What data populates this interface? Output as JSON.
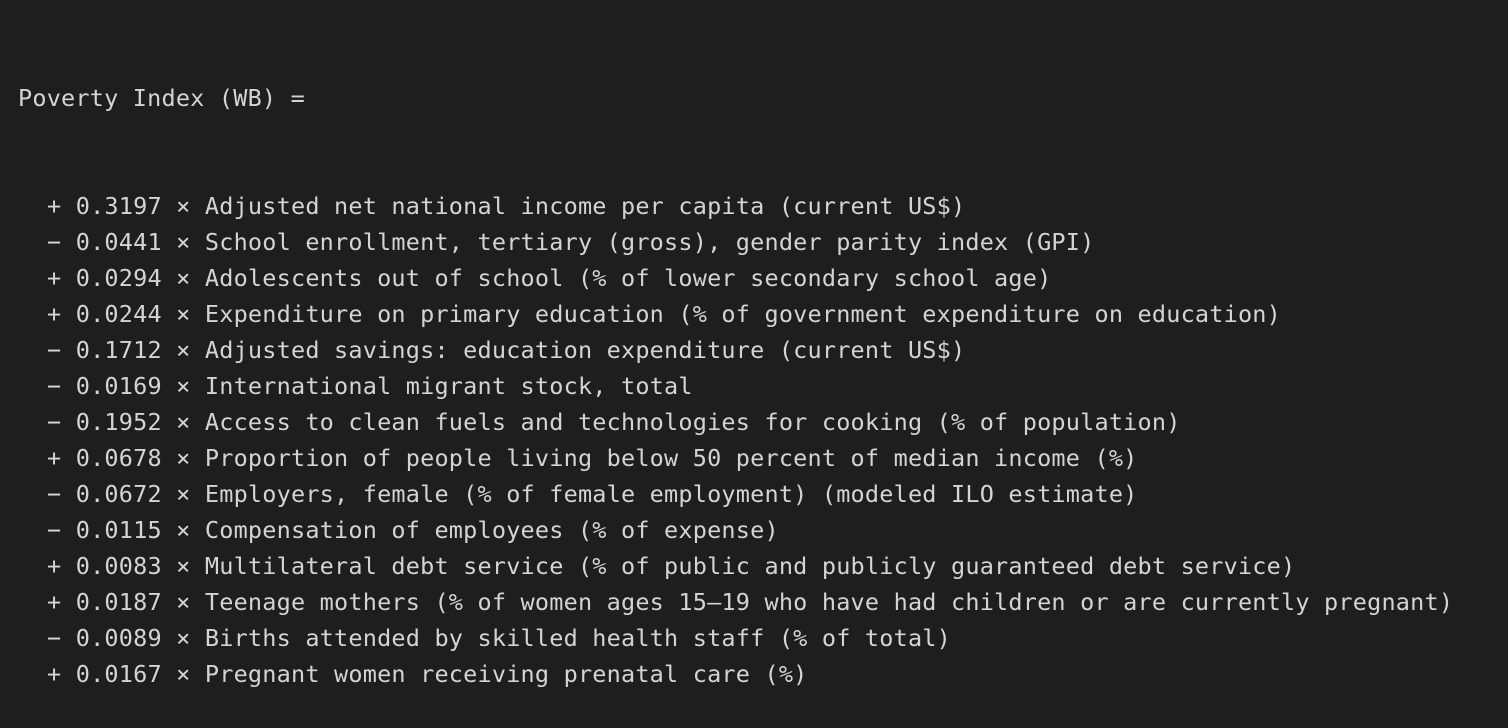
{
  "header": "Poverty Index (WB) =",
  "terms": [
    {
      "sign": "+",
      "coef": "0.3197",
      "name": "Adjusted net national income per capita (current US$)"
    },
    {
      "sign": "−",
      "coef": "0.0441",
      "name": "School enrollment, tertiary (gross), gender parity index (GPI)"
    },
    {
      "sign": "+",
      "coef": "0.0294",
      "name": "Adolescents out of school (% of lower secondary school age)"
    },
    {
      "sign": "+",
      "coef": "0.0244",
      "name": "Expenditure on primary education (% of government expenditure on education)"
    },
    {
      "sign": "−",
      "coef": "0.1712",
      "name": "Adjusted savings: education expenditure (current US$)"
    },
    {
      "sign": "−",
      "coef": "0.0169",
      "name": "International migrant stock, total"
    },
    {
      "sign": "−",
      "coef": "0.1952",
      "name": "Access to clean fuels and technologies for cooking (% of population)"
    },
    {
      "sign": "+",
      "coef": "0.0678",
      "name": "Proportion of people living below 50 percent of median income (%)"
    },
    {
      "sign": "−",
      "coef": "0.0672",
      "name": "Employers, female (% of female employment) (modeled ILO estimate)"
    },
    {
      "sign": "−",
      "coef": "0.0115",
      "name": "Compensation of employees (% of expense)"
    },
    {
      "sign": "+",
      "coef": "0.0083",
      "name": "Multilateral debt service (% of public and publicly guaranteed debt service)"
    },
    {
      "sign": "+",
      "coef": "0.0187",
      "name": "Teenage mothers (% of women ages 15–19 who have had children or are currently pregnant)"
    },
    {
      "sign": "−",
      "coef": "0.0089",
      "name": "Births attended by skilled health staff (% of total)"
    },
    {
      "sign": "+",
      "coef": "0.0167",
      "name": "Pregnant women receiving prenatal care (%)"
    }
  ],
  "multiply_symbol": "×",
  "colors": {
    "background": "#1e1e1e",
    "text": "#d4d4d4"
  }
}
